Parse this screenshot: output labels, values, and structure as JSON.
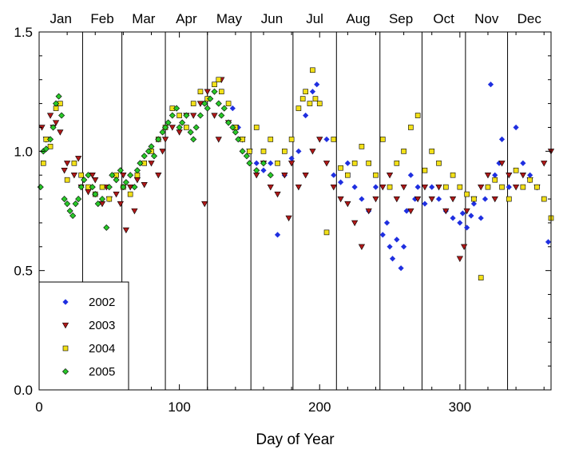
{
  "chart_data": {
    "type": "scatter",
    "xlabel": "Day of Year",
    "ylabel": "",
    "xlim": [
      0,
      365
    ],
    "ylim": [
      0,
      1.5
    ],
    "x_ticks": [
      0,
      100,
      200,
      300
    ],
    "y_ticks": [
      0.0,
      0.5,
      1.0,
      1.5
    ],
    "y_tick_labels": [
      "0.0",
      "0.5",
      "1.0",
      "1.5"
    ],
    "month_labels": [
      "Jan",
      "Feb",
      "Mar",
      "Apr",
      "May",
      "Jun",
      "Jul",
      "Aug",
      "Sep",
      "Oct",
      "Nov",
      "Dec"
    ],
    "month_boundaries": [
      31,
      59,
      90,
      120,
      151,
      181,
      212,
      243,
      273,
      304,
      334
    ],
    "grid": false,
    "legend_position": "bottom-left",
    "series": [
      {
        "name": "2002",
        "marker": "diamond",
        "color": "#1f2fe0",
        "x": [
          138,
          142,
          145,
          150,
          155,
          160,
          165,
          170,
          175,
          180,
          185,
          190,
          195,
          198,
          200,
          205,
          210,
          215,
          220,
          225,
          230,
          235,
          240,
          245,
          248,
          250,
          252,
          255,
          258,
          260,
          262,
          265,
          268,
          270,
          275,
          280,
          285,
          290,
          295,
          300,
          302,
          305,
          308,
          310,
          315,
          318,
          320,
          322,
          325,
          328,
          330,
          335,
          340,
          345,
          350,
          355,
          360,
          363
        ],
        "y": [
          1.18,
          1.1,
          1.05,
          1.0,
          0.95,
          0.92,
          0.95,
          0.65,
          0.9,
          0.97,
          1.0,
          1.15,
          1.25,
          1.28,
          1.2,
          1.05,
          0.9,
          0.87,
          0.95,
          0.85,
          0.8,
          0.75,
          0.85,
          0.65,
          0.7,
          0.6,
          0.55,
          0.63,
          0.51,
          0.6,
          0.75,
          0.9,
          0.8,
          0.85,
          0.78,
          0.85,
          0.8,
          0.75,
          0.72,
          0.7,
          0.74,
          0.68,
          0.73,
          0.78,
          0.72,
          0.8,
          0.85,
          1.28,
          0.9,
          0.95,
          1.05,
          0.85,
          1.1,
          0.95,
          0.9,
          0.85,
          0.8,
          0.62
        ]
      },
      {
        "name": "2003",
        "marker": "triangle-down",
        "color": "#b01818",
        "x": [
          2,
          5,
          8,
          10,
          12,
          15,
          18,
          20,
          25,
          28,
          30,
          35,
          38,
          40,
          45,
          48,
          50,
          55,
          58,
          60,
          62,
          65,
          68,
          70,
          75,
          80,
          85,
          88,
          90,
          95,
          100,
          105,
          110,
          115,
          118,
          120,
          125,
          128,
          130,
          135,
          140,
          145,
          150,
          155,
          160,
          165,
          170,
          175,
          178,
          180,
          185,
          190,
          195,
          200,
          205,
          210,
          215,
          220,
          225,
          230,
          235,
          240,
          245,
          250,
          255,
          260,
          265,
          270,
          275,
          280,
          285,
          290,
          295,
          300,
          303,
          305,
          310,
          315,
          320,
          325,
          330,
          335,
          340,
          345,
          350,
          355,
          360,
          365
        ],
        "y": [
          1.1,
          1.05,
          1.15,
          1.1,
          1.12,
          1.08,
          0.92,
          0.95,
          0.9,
          0.97,
          0.85,
          0.83,
          0.9,
          0.88,
          0.78,
          0.85,
          0.8,
          0.82,
          0.78,
          0.9,
          0.67,
          0.85,
          0.75,
          0.88,
          0.86,
          0.95,
          0.9,
          1.0,
          1.05,
          1.1,
          1.08,
          1.15,
          1.15,
          1.2,
          0.78,
          1.25,
          1.15,
          1.05,
          1.3,
          1.12,
          1.1,
          1.05,
          1.0,
          0.9,
          0.95,
          0.85,
          0.82,
          0.9,
          0.72,
          0.95,
          0.85,
          0.9,
          1.0,
          1.05,
          0.95,
          0.85,
          0.8,
          0.78,
          0.7,
          0.6,
          0.75,
          0.8,
          0.85,
          0.9,
          0.8,
          0.85,
          0.75,
          0.8,
          0.85,
          0.8,
          0.85,
          0.75,
          0.8,
          0.55,
          0.6,
          0.75,
          0.8,
          0.85,
          0.9,
          0.8,
          0.95,
          0.9,
          0.85,
          0.9,
          0.88,
          0.85,
          0.95,
          1.0
        ]
      },
      {
        "name": "2004",
        "marker": "square",
        "color": "#f2e018",
        "x": [
          3,
          5,
          8,
          12,
          15,
          20,
          25,
          30,
          35,
          40,
          45,
          50,
          55,
          60,
          65,
          70,
          75,
          80,
          85,
          90,
          95,
          100,
          105,
          110,
          115,
          120,
          125,
          128,
          130,
          135,
          140,
          145,
          150,
          155,
          160,
          165,
          170,
          175,
          180,
          185,
          188,
          190,
          193,
          195,
          197,
          200,
          205,
          210,
          215,
          220,
          225,
          230,
          235,
          240,
          245,
          250,
          255,
          260,
          265,
          270,
          275,
          280,
          285,
          290,
          295,
          300,
          305,
          310,
          315,
          320,
          325,
          330,
          335,
          340,
          345,
          350,
          355,
          360,
          365
        ],
        "y": [
          0.95,
          1.05,
          1.02,
          1.18,
          1.2,
          0.88,
          0.95,
          0.9,
          0.85,
          0.82,
          0.85,
          0.8,
          0.9,
          0.85,
          0.82,
          0.9,
          0.95,
          1.0,
          1.05,
          1.1,
          1.18,
          1.15,
          1.1,
          1.2,
          1.25,
          1.22,
          1.28,
          1.3,
          1.25,
          1.2,
          1.1,
          1.05,
          1.0,
          1.1,
          1.0,
          1.05,
          0.95,
          1.0,
          1.05,
          1.18,
          1.22,
          1.25,
          1.2,
          1.34,
          1.22,
          1.2,
          0.66,
          1.05,
          0.93,
          0.9,
          0.95,
          1.02,
          0.95,
          0.9,
          1.05,
          0.85,
          0.95,
          1.0,
          1.1,
          1.15,
          0.92,
          1.0,
          0.95,
          0.85,
          0.9,
          0.85,
          0.82,
          0.8,
          0.47,
          0.85,
          0.88,
          0.85,
          0.8,
          0.92,
          0.85,
          0.88,
          0.85,
          0.8,
          0.72
        ]
      },
      {
        "name": "2005",
        "marker": "diamond",
        "color": "#28c828",
        "x": [
          1,
          3,
          5,
          8,
          10,
          12,
          14,
          16,
          18,
          20,
          22,
          24,
          26,
          28,
          30,
          32,
          35,
          38,
          40,
          42,
          45,
          48,
          50,
          52,
          55,
          58,
          60,
          62,
          65,
          68,
          70,
          72,
          75,
          78,
          80,
          82,
          85,
          88,
          90,
          92,
          95,
          98,
          100,
          102,
          105,
          108,
          110,
          112,
          115,
          118,
          120,
          122,
          125,
          128,
          130,
          132,
          135,
          138,
          140,
          142,
          145,
          148,
          150,
          155,
          160,
          165
        ],
        "y": [
          0.85,
          1.0,
          1.01,
          1.05,
          1.1,
          1.2,
          1.23,
          1.15,
          0.8,
          0.78,
          0.75,
          0.73,
          0.78,
          0.8,
          0.85,
          0.88,
          0.9,
          0.85,
          0.82,
          0.78,
          0.8,
          0.68,
          0.85,
          0.9,
          0.88,
          0.92,
          0.85,
          0.87,
          0.9,
          0.85,
          0.92,
          0.95,
          0.98,
          1.0,
          1.02,
          0.98,
          1.05,
          1.08,
          1.1,
          1.12,
          1.15,
          1.18,
          1.1,
          1.12,
          1.15,
          1.08,
          1.05,
          1.1,
          1.15,
          1.2,
          1.18,
          1.22,
          1.25,
          1.2,
          1.15,
          1.18,
          1.12,
          1.1,
          1.08,
          1.05,
          1.0,
          0.98,
          0.95,
          0.92,
          0.95,
          0.9
        ]
      }
    ]
  }
}
